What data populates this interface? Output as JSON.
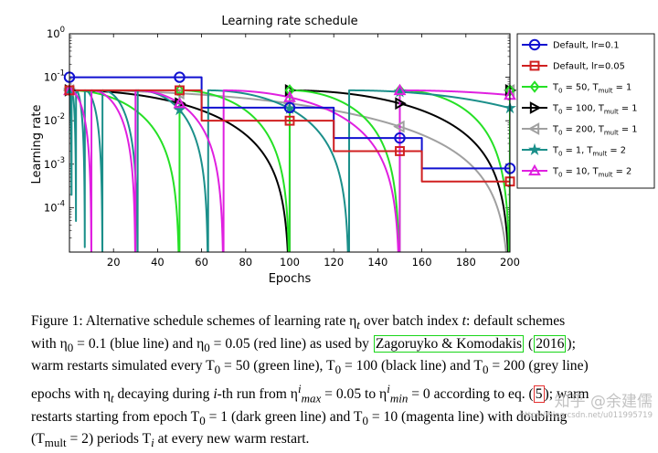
{
  "chart_data": {
    "type": "line",
    "title": "Learning rate schedule",
    "xlabel": "Epochs",
    "ylabel": "Learning rate",
    "y_scale": "log",
    "xlim": [
      0,
      200
    ],
    "ylim": [
      9.5e-06,
      1
    ],
    "x_ticks": [
      20,
      40,
      60,
      80,
      100,
      120,
      140,
      160,
      180,
      200
    ],
    "y_ticks": [
      {
        "value": 1,
        "base": "10",
        "exp": "0"
      },
      {
        "value": 0.1,
        "base": "10",
        "exp": "-1"
      },
      {
        "value": 0.01,
        "base": "10",
        "exp": "-2"
      },
      {
        "value": 0.001,
        "base": "10",
        "exp": "-3"
      },
      {
        "value": 0.0001,
        "base": "10",
        "exp": "-4"
      }
    ],
    "legend_position": "right-outside",
    "series": [
      {
        "name": "Default, lr=0.1",
        "color": "#1010d0",
        "marker": "circle",
        "kind": "step",
        "base_lr": 0.1,
        "drop_epochs": [
          60,
          120,
          160
        ],
        "factor": 0.2,
        "marker_x": [
          0,
          50,
          100,
          150,
          200
        ]
      },
      {
        "name": "Default, lr=0.05",
        "color": "#d02020",
        "marker": "square",
        "kind": "step",
        "base_lr": 0.05,
        "drop_epochs": [
          60,
          120,
          160
        ],
        "factor": 0.2,
        "marker_x": [
          0,
          50,
          100,
          150,
          200
        ]
      },
      {
        "name": "T_0 = 50, T_mult = 1",
        "label_parts": [
          "T",
          "0",
          " = 50, T",
          "mult",
          " = 1"
        ],
        "color": "#25e025",
        "marker": "diamond",
        "kind": "cosine",
        "T0": 50,
        "Tmult": 1,
        "marker_x": [
          0,
          50,
          100,
          150,
          200
        ]
      },
      {
        "name": "T_0 = 100, T_mult = 1",
        "label_parts": [
          "T",
          "0",
          " = 100, T",
          "mult",
          " = 1"
        ],
        "color": "#000000",
        "marker": "triangle-right",
        "kind": "cosine",
        "T0": 100,
        "Tmult": 1,
        "marker_x": [
          0,
          50,
          100,
          150,
          200
        ]
      },
      {
        "name": "T_0 = 200, T_mult = 1",
        "label_parts": [
          "T",
          "0",
          " = 200, T",
          "mult",
          " = 1"
        ],
        "color": "#a0a0a0",
        "marker": "triangle-left",
        "kind": "cosine",
        "T0": 200,
        "Tmult": 1,
        "marker_x": [
          0,
          50,
          100,
          150,
          200
        ]
      },
      {
        "name": "T_0 = 1, T_mult = 2",
        "label_parts": [
          "T",
          "0",
          " = 1, T",
          "mult",
          " = 2"
        ],
        "color": "#1b8f8a",
        "marker": "star",
        "kind": "cosine",
        "T0": 1,
        "Tmult": 2,
        "marker_x": [
          0,
          50,
          100,
          150,
          200
        ]
      },
      {
        "name": "T_0 = 10, T_mult = 2",
        "label_parts": [
          "T",
          "0",
          " = 10, T",
          "mult",
          " = 2"
        ],
        "color": "#e020e0",
        "marker": "triangle-up",
        "kind": "cosine",
        "T0": 10,
        "Tmult": 2,
        "marker_x": [
          0,
          50,
          100,
          150,
          200
        ]
      }
    ]
  },
  "caption": {
    "l1_a": "Figure 1:   Alternative schedule schemes of learning rate η",
    "l1_b": "t",
    "l1_c": " over batch index ",
    "l1_d": "t",
    "l1_e": ": default schemes",
    "l2_a": "with η",
    "l2_b": "0",
    "l2_c": " = 0.1 (blue line) and η",
    "l2_d": "0",
    "l2_e": " = 0.05 (red line) as used by ",
    "l2_cite": "Zagoruyko & Komodakis",
    "l2_f": " (",
    "l2_year": "2016",
    "l2_g": ");",
    "l3_a": "warm restarts simulated every T",
    "l3_b": "0",
    "l3_c": " = 50 (green line), T",
    "l3_d": "0",
    "l3_e": " = 100 (black line) and T",
    "l3_f": "0",
    "l3_g": " = 200 (grey line)",
    "l4_a": "epochs with η",
    "l4_b": "t",
    "l4_c": " decaying during ",
    "l4_d": "i",
    "l4_e": "-th run from η",
    "l4_f1": "i",
    "l4_f2": "max",
    "l4_g": " = 0.05 to η",
    "l4_h1": "i",
    "l4_h2": "min",
    "l4_i": " = 0 according to eq. (",
    "l4_eq": "5",
    "l4_j": "); warm",
    "l5_a": "restarts starting from epoch T",
    "l5_b": "0",
    "l5_c": " = 1 (dark green line) and T",
    "l5_d": "0",
    "l5_e": " = 10 (magenta line) with doubling",
    "l6_a": "(T",
    "l6_b": "mult",
    "l6_c": " = 2) periods T",
    "l6_d": "i",
    "l6_e": " at every new warm restart."
  },
  "watermark": {
    "main": "知乎 @余建儒",
    "sub": "https://blog.csdn.net/u011995719"
  }
}
